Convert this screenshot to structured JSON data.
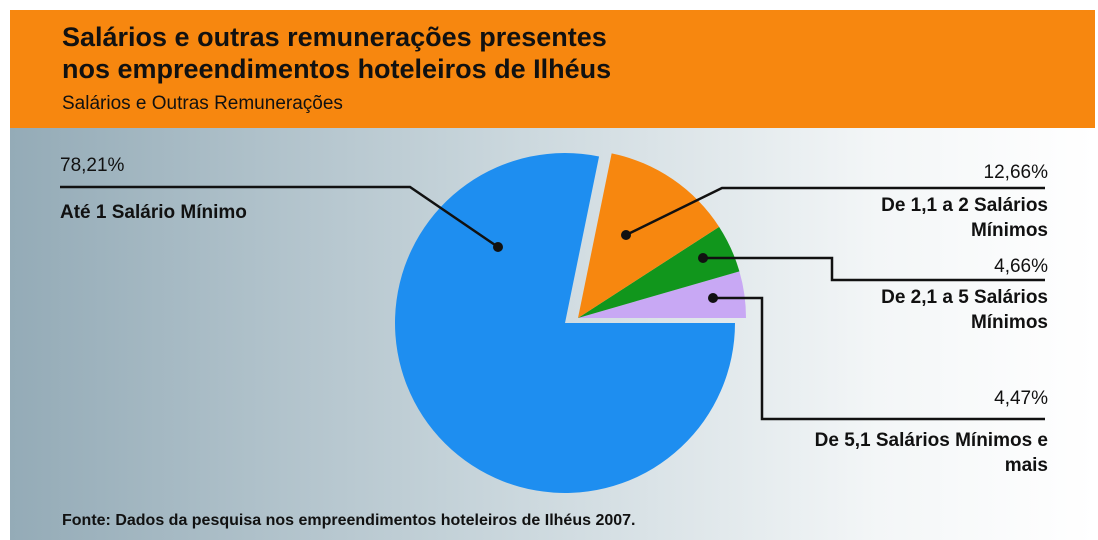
{
  "chart_data": {
    "type": "pie",
    "title_lines": [
      "Salários e outras remunerações presentes",
      "nos empreendimentos hoteleiros de Ilhéus"
    ],
    "subtitle": "Salários e Outras Remunerações",
    "categories": [
      "Até 1 Salário Mínimo",
      "De 1,1 a 2 Salários Mínimos",
      "De 2,1 a 5 Salários Mínimos",
      "De 5,1 Salários Mínimos e mais"
    ],
    "values": [
      78.21,
      12.66,
      4.66,
      4.47
    ],
    "value_labels": [
      "78,21%",
      "12,66%",
      "4,66%",
      "4,47%"
    ],
    "colors": [
      "#1e8ef0",
      "#f7870f",
      "#11961c",
      "#c8a8f4"
    ],
    "source": "Fonte: Dados da pesquisa nos empreendimentos hoteleiros de Ilhéus 2007."
  }
}
